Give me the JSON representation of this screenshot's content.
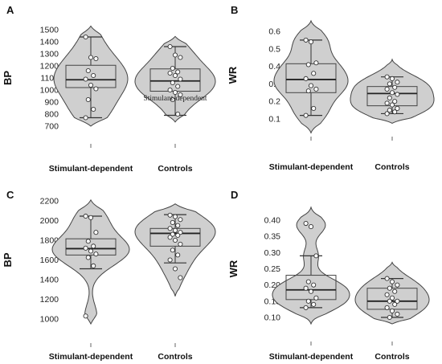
{
  "chart_data": [
    {
      "panel": "A",
      "type": "violin",
      "ylabel": "BP",
      "ylim": [
        700,
        1500
      ],
      "yticks": [
        "1500",
        "1400",
        "1300",
        "1200",
        "1100",
        "1000",
        "900",
        "800",
        "700"
      ],
      "categories": [
        "Stimulant-dependent",
        "Controls"
      ],
      "annotation": "Stimulant-dependent",
      "groups": [
        {
          "box": [
            1020,
            1085,
            1205
          ],
          "whiskers": [
            770,
            1440
          ],
          "points": [
            1440,
            1270,
            1260,
            1160,
            1120,
            1090,
            1040,
            1010,
            920,
            840,
            770
          ]
        },
        {
          "box": [
            990,
            1075,
            1175
          ],
          "whiskers": [
            790,
            1360
          ],
          "points": [
            1360,
            1290,
            1270,
            1180,
            1150,
            1140,
            1120,
            1090,
            1060,
            1030,
            1000,
            980,
            960,
            920,
            800
          ]
        }
      ]
    },
    {
      "panel": "B",
      "type": "violin",
      "ylabel": "WR",
      "ylim": [
        0.05,
        0.65
      ],
      "yticks": [
        "0.6",
        "0.5",
        "0.4",
        "0.3",
        "0.2",
        "0.1"
      ],
      "categories": [
        "Stimulant-dependent",
        "Controls"
      ],
      "groups": [
        {
          "box": [
            0.25,
            0.325,
            0.415
          ],
          "whiskers": [
            0.12,
            0.55
          ],
          "points": [
            0.55,
            0.54,
            0.42,
            0.41,
            0.36,
            0.33,
            0.29,
            0.27,
            0.26,
            0.16,
            0.12
          ]
        },
        {
          "box": [
            0.175,
            0.245,
            0.285
          ],
          "whiskers": [
            0.13,
            0.34
          ],
          "points": [
            0.34,
            0.33,
            0.31,
            0.3,
            0.28,
            0.27,
            0.25,
            0.24,
            0.22,
            0.2,
            0.19,
            0.18,
            0.16,
            0.15,
            0.14,
            0.13
          ]
        }
      ]
    },
    {
      "panel": "C",
      "type": "violin",
      "ylabel": "BP",
      "ylim": [
        900,
        2250
      ],
      "yticks": [
        "2200",
        "2000",
        "1800",
        "1600",
        "1400",
        "1200",
        "1000"
      ],
      "categories": [
        "Stimulant-dependent",
        "Controls"
      ],
      "groups": [
        {
          "box": [
            1650,
            1715,
            1815
          ],
          "whiskers": [
            1510,
            2045
          ],
          "points": [
            2045,
            2030,
            1880,
            1790,
            1740,
            1720,
            1690,
            1660,
            1625,
            1540,
            1030
          ]
        },
        {
          "box": [
            1740,
            1870,
            1920
          ],
          "whiskers": [
            1570,
            2060
          ],
          "points": [
            2055,
            2040,
            2010,
            1980,
            1950,
            1920,
            1900,
            1880,
            1860,
            1850,
            1830,
            1800,
            1760,
            1700,
            1650,
            1600,
            1510,
            1420
          ]
        }
      ]
    },
    {
      "panel": "D",
      "type": "violin",
      "ylabel": "WR",
      "ylim": [
        0.08,
        0.42
      ],
      "yticks": [
        "0.40",
        "0.35",
        "0.30",
        "0.25",
        "0.20",
        "0.15",
        "0.10"
      ],
      "categories": [
        "Stimulant-dependent",
        "Controls"
      ],
      "groups": [
        {
          "box": [
            0.155,
            0.185,
            0.23
          ],
          "whiskers": [
            0.13,
            0.29
          ],
          "points": [
            0.39,
            0.38,
            0.29,
            0.21,
            0.2,
            0.19,
            0.18,
            0.16,
            0.15,
            0.14,
            0.13
          ]
        },
        {
          "box": [
            0.125,
            0.15,
            0.19
          ],
          "whiskers": [
            0.1,
            0.22
          ],
          "points": [
            0.22,
            0.21,
            0.2,
            0.19,
            0.18,
            0.17,
            0.16,
            0.15,
            0.15,
            0.14,
            0.13,
            0.12,
            0.11,
            0.1
          ]
        }
      ]
    }
  ]
}
